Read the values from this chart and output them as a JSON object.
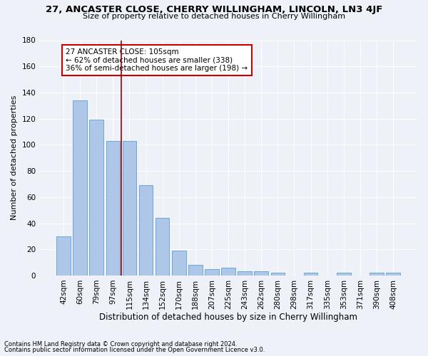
{
  "title1": "27, ANCASTER CLOSE, CHERRY WILLINGHAM, LINCOLN, LN3 4JF",
  "title2": "Size of property relative to detached houses in Cherry Willingham",
  "xlabel": "Distribution of detached houses by size in Cherry Willingham",
  "ylabel": "Number of detached properties",
  "footnote1": "Contains HM Land Registry data © Crown copyright and database right 2024.",
  "footnote2": "Contains public sector information licensed under the Open Government Licence v3.0.",
  "bar_labels": [
    "42sqm",
    "60sqm",
    "79sqm",
    "97sqm",
    "115sqm",
    "134sqm",
    "152sqm",
    "170sqm",
    "188sqm",
    "207sqm",
    "225sqm",
    "243sqm",
    "262sqm",
    "280sqm",
    "298sqm",
    "317sqm",
    "335sqm",
    "353sqm",
    "371sqm",
    "390sqm",
    "408sqm"
  ],
  "bar_values": [
    30,
    134,
    119,
    103,
    103,
    69,
    44,
    19,
    8,
    5,
    6,
    3,
    3,
    2,
    0,
    2,
    0,
    2,
    0,
    2,
    2
  ],
  "bar_color": "#aec6e8",
  "bar_edge_color": "#5a9fd4",
  "vline_x": 3.5,
  "vline_color": "#990000",
  "ylim": [
    0,
    180
  ],
  "yticks": [
    0,
    20,
    40,
    60,
    80,
    100,
    120,
    140,
    160,
    180
  ],
  "annotation_box_text": "27 ANCASTER CLOSE: 105sqm\n← 62% of detached houses are smaller (338)\n36% of semi-detached houses are larger (198) →",
  "annotation_box_color": "#cc0000",
  "annotation_box_facecolor": "#ffffff",
  "background_color": "#eef2f8",
  "grid_color": "#ffffff",
  "title1_fontsize": 9.5,
  "title2_fontsize": 8.0,
  "xlabel_fontsize": 8.5,
  "ylabel_fontsize": 8.0,
  "tick_fontsize": 7.5,
  "annot_fontsize": 7.5,
  "footnote_fontsize": 6.0
}
